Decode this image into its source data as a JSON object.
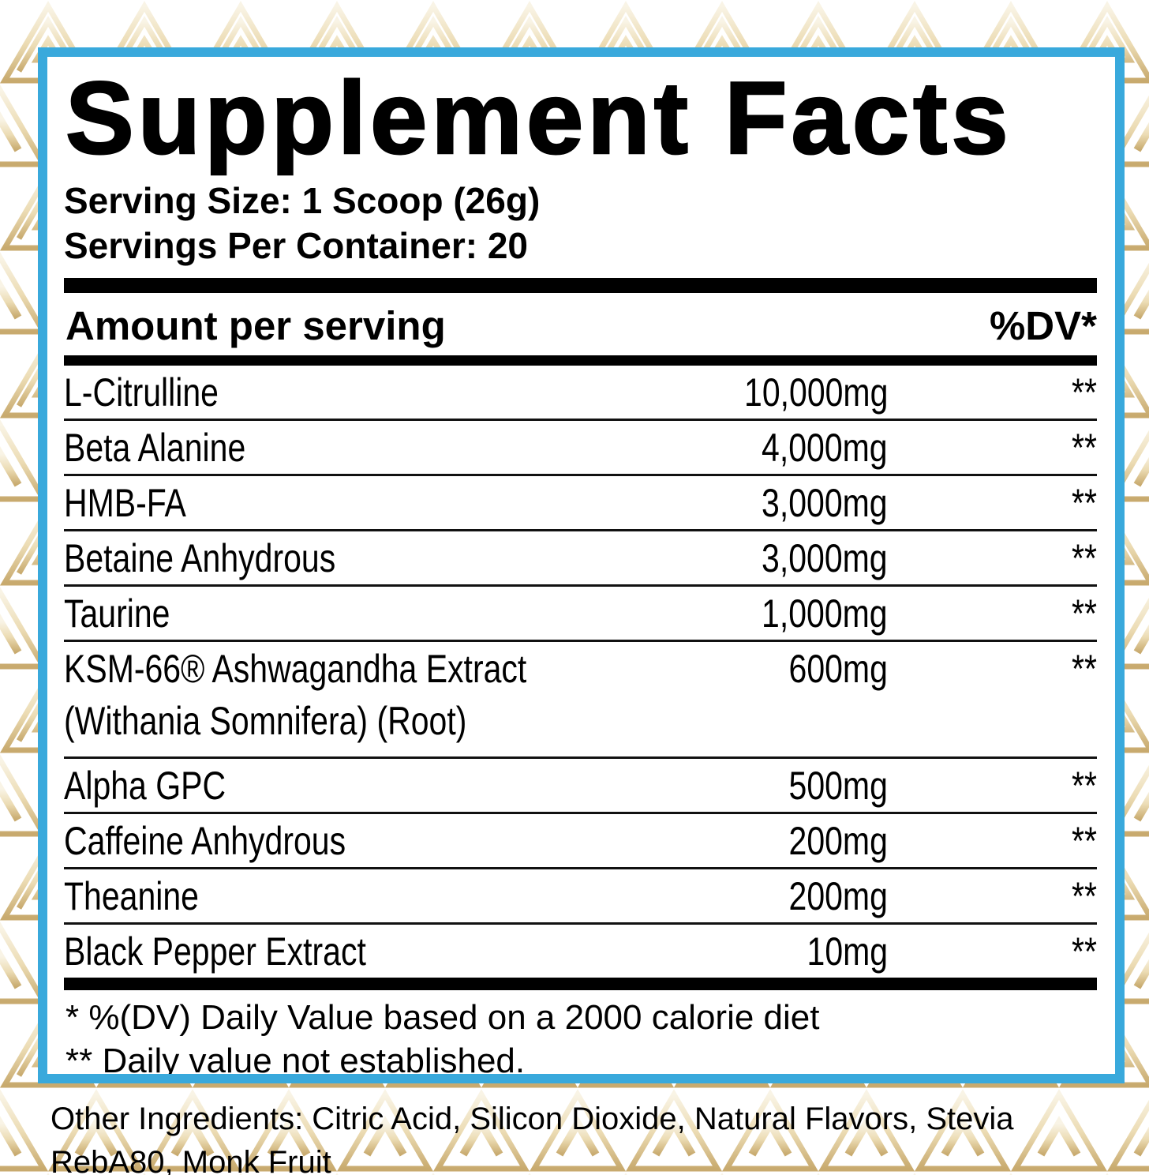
{
  "panel": {
    "title": "Supplement Facts",
    "serving_size": "Serving Size: 1 Scoop (26g)",
    "servings_per_container": "Servings Per Container: 20",
    "header": {
      "amount": "Amount per serving",
      "dv": "%DV*"
    },
    "rows": [
      {
        "name": "L-Citrulline",
        "amount": "10,000mg",
        "dv": "**"
      },
      {
        "name": "Beta Alanine",
        "amount": "4,000mg",
        "dv": "**"
      },
      {
        "name": "HMB-FA",
        "amount": "3,000mg",
        "dv": "**"
      },
      {
        "name": "Betaine Anhydrous",
        "amount": "3,000mg",
        "dv": "**"
      },
      {
        "name": "Taurine",
        "amount": "1,000mg",
        "dv": "**"
      },
      {
        "name": "KSM-66® Ashwagandha Extract",
        "name2": "(Withania Somnifera) (Root)",
        "amount": "600mg",
        "dv": "**"
      },
      {
        "name": "Alpha GPC",
        "amount": "500mg",
        "dv": "**"
      },
      {
        "name": "Caffeine Anhydrous",
        "amount": "200mg",
        "dv": "**"
      },
      {
        "name": "Theanine",
        "amount": "200mg",
        "dv": "**"
      },
      {
        "name": "Black Pepper Extract",
        "amount": "10mg",
        "dv": "**"
      }
    ],
    "footnotes": [
      "* %(DV) Daily Value based on a 2000 calorie diet",
      "** Daily value not established."
    ],
    "other_ingredients": "Other Ingredients: Citric Acid, Silicon Dioxide, Natural Flavors, Stevia RebA80, Monk Fruit",
    "colors": {
      "border_blue": "#39A9DC",
      "pattern_gold_dark": "#c8aa6e",
      "pattern_gold_mid": "#ecdcb4",
      "pattern_gold_light": "#f9f4e6",
      "text": "#000000"
    }
  }
}
